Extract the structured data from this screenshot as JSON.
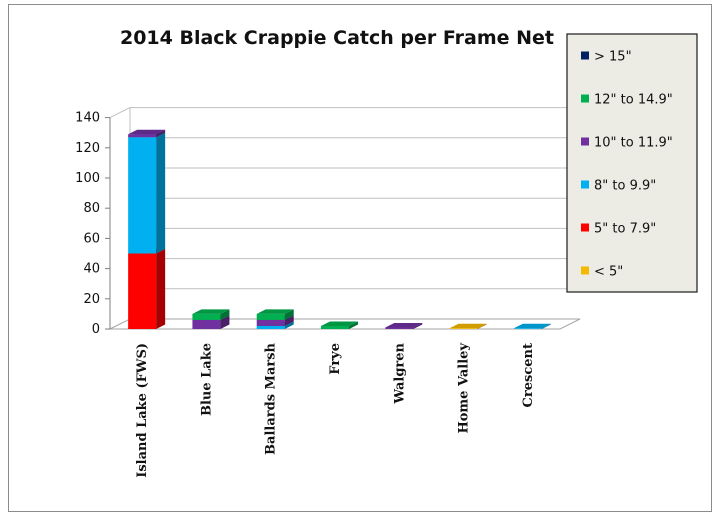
{
  "chart_data": {
    "type": "bar",
    "stacked": true,
    "title": "2014 Black Crappie Catch per Frame Net",
    "xlabel": "",
    "ylabel": "",
    "ylim": [
      0,
      140
    ],
    "yticks": [
      0,
      20,
      40,
      60,
      80,
      100,
      120,
      140
    ],
    "grid": true,
    "legend_position": "right",
    "categories": [
      "Island Lake (FWS)",
      "Blue Lake",
      "Ballards Marsh",
      "Frye",
      "Walgren",
      "Home Valley",
      "Crescent"
    ],
    "series": [
      {
        "name": "< 5\"",
        "color": "#f5b800",
        "values": [
          0,
          0,
          0,
          0,
          0,
          0.5,
          0
        ]
      },
      {
        "name": "5\" to 7.9\"",
        "color": "#ff0000",
        "values": [
          50,
          0,
          0,
          0,
          0,
          0,
          0
        ]
      },
      {
        "name": "8\" to 9.9\"",
        "color": "#00b0f0",
        "values": [
          77,
          0,
          2,
          0,
          0,
          0,
          0.5
        ]
      },
      {
        "name": "10\" to 11.9\"",
        "color": "#7030a0",
        "values": [
          2,
          6,
          4,
          0,
          1,
          0,
          0
        ]
      },
      {
        "name": "12\" to 14.9\"",
        "color": "#00b050",
        "values": [
          0,
          4,
          4,
          2,
          0,
          0,
          0
        ]
      },
      {
        "name": "> 15\"",
        "color": "#002060",
        "values": [
          0,
          0,
          0,
          0,
          0,
          0,
          0
        ]
      }
    ]
  }
}
